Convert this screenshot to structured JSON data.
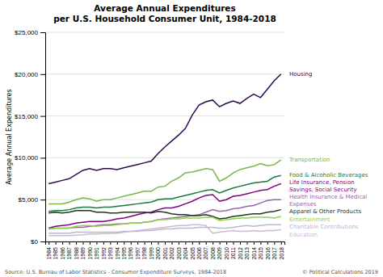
{
  "chart_data": {
    "type": "line",
    "title": "Average Annual Expenditures\nper U.S. Household Consumer Unit, 1984-2018",
    "y_label": "Average Annual Expenditures",
    "annotations": [
      "Source: U.S. Bureau of Labor Statistics - Consumer Expenditure Surveys, 1984-2018",
      "© Political Calculations 2019"
    ],
    "x": [
      1984,
      1985,
      1986,
      1987,
      1988,
      1989,
      1990,
      1991,
      1992,
      1993,
      1994,
      1995,
      1996,
      1997,
      1998,
      1999,
      2000,
      2001,
      2002,
      2003,
      2004,
      2005,
      2006,
      2007,
      2008,
      2009,
      2010,
      2011,
      2012,
      2013,
      2014,
      2015,
      2016,
      2017,
      2018
    ],
    "series": [
      {
        "name": "Housing",
        "color": "#2d0a4e",
        "values": [
          6900,
          7100,
          7300,
          7500,
          8000,
          8500,
          8700,
          8500,
          8700,
          8700,
          8600,
          8800,
          9000,
          9200,
          9400,
          9600,
          10500,
          11300,
          12000,
          12700,
          13500,
          15100,
          16300,
          16700,
          16900,
          16100,
          16500,
          16800,
          16500,
          17100,
          17600,
          17200,
          18200,
          19200,
          20000
        ]
      },
      {
        "name": "Transportation",
        "color": "#7ab648",
        "values": [
          4500,
          4500,
          4500,
          4700,
          5000,
          5200,
          5100,
          4800,
          5000,
          5000,
          5200,
          5400,
          5600,
          5800,
          6000,
          6000,
          6500,
          6600,
          7200,
          7600,
          8200,
          8300,
          8500,
          8700,
          8600,
          7200,
          7600,
          8200,
          8600,
          8800,
          9000,
          9300,
          9049,
          9180,
          9761
        ]
      },
      {
        "name": "Food & Alcoholic Beverages",
        "color": "#1a7a3c",
        "values": [
          3600,
          3700,
          3700,
          3800,
          4000,
          4100,
          4100,
          4000,
          4100,
          4100,
          4200,
          4300,
          4400,
          4500,
          4600,
          4700,
          5000,
          5100,
          5100,
          5300,
          5500,
          5700,
          5900,
          6100,
          6200,
          5800,
          6100,
          6400,
          6600,
          6800,
          7000,
          7100,
          7200,
          7700,
          7900
        ]
      },
      {
        "name": "Life Insurance, Pension\nSavings, Social Security",
        "color": "#800080",
        "values": [
          1600,
          1800,
          1900,
          2000,
          2200,
          2300,
          2400,
          2400,
          2400,
          2500,
          2700,
          2800,
          3000,
          3200,
          3400,
          3500,
          3800,
          4000,
          4000,
          4200,
          4500,
          4800,
          5200,
          5500,
          5600,
          4800,
          5000,
          5400,
          5500,
          5700,
          5900,
          6100,
          6200,
          6600,
          6900
        ]
      },
      {
        "name": "Health Insurance & Medical\nExpenses",
        "color": "#9966aa",
        "values": [
          1500,
          1600,
          1600,
          1600,
          1700,
          1700,
          1800,
          1900,
          2000,
          2000,
          2100,
          2100,
          2200,
          2200,
          2300,
          2400,
          2600,
          2700,
          2800,
          2900,
          3000,
          3100,
          3200,
          3500,
          3800,
          3600,
          3700,
          3900,
          4000,
          4200,
          4300,
          4600,
          4900,
          5000,
          5000
        ]
      },
      {
        "name": "Apparel & Other Products",
        "color": "#1a3a1a",
        "values": [
          3400,
          3500,
          3400,
          3500,
          3700,
          3700,
          3700,
          3500,
          3500,
          3400,
          3400,
          3500,
          3500,
          3500,
          3500,
          3400,
          3600,
          3500,
          3300,
          3200,
          3200,
          3100,
          3100,
          3200,
          3000,
          2700,
          2800,
          3000,
          3100,
          3200,
          3300,
          3300,
          3500,
          3600,
          3800
        ]
      },
      {
        "name": "Entertainment",
        "color": "#90d050",
        "values": [
          1500,
          1600,
          1600,
          1600,
          1800,
          1900,
          1900,
          1800,
          1900,
          1900,
          2000,
          2100,
          2200,
          2200,
          2300,
          2400,
          2600,
          2600,
          2700,
          2700,
          2800,
          2800,
          2800,
          2900,
          2900,
          2500,
          2600,
          2700,
          2800,
          2800,
          2900,
          2900,
          2900,
          2800,
          3000
        ]
      },
      {
        "name": "Charitable Contributions",
        "color": "#b8b8d0",
        "values": [
          1000,
          1000,
          1000,
          1000,
          1100,
          1100,
          1100,
          1100,
          1100,
          1100,
          1100,
          1200,
          1200,
          1200,
          1300,
          1300,
          1400,
          1500,
          1500,
          1600,
          1600,
          1600,
          1700,
          1700,
          1700,
          1600,
          1600,
          1700,
          1800,
          1900,
          1800,
          1900,
          2000,
          2000,
          2000
        ]
      },
      {
        "name": "Education",
        "color": "#d0b8d0",
        "values": [
          700,
          700,
          700,
          700,
          750,
          800,
          900,
          900,
          950,
          950,
          1000,
          1100,
          1200,
          1300,
          1400,
          1500,
          1600,
          1700,
          1800,
          1900,
          1900,
          2000,
          2000,
          1900,
          1000,
          1100,
          1200,
          1300,
          1200,
          1200,
          1300,
          1200,
          1300,
          1300,
          1400
        ]
      }
    ],
    "xlim": [
      1983.5,
      2018.5
    ],
    "xticks": [
      1984,
      1985,
      1986,
      1987,
      1988,
      1989,
      1990,
      1991,
      1992,
      1993,
      1994,
      1995,
      1996,
      1997,
      1998,
      1999,
      2000,
      2001,
      2002,
      2003,
      2004,
      2005,
      2006,
      2007,
      2008,
      2009,
      2010,
      2011,
      2012,
      2013,
      2014,
      2015,
      2016,
      2017,
      2018
    ],
    "ylim": [
      0,
      25000
    ],
    "yticks": [
      {
        "value": 0,
        "label": "$0"
      },
      {
        "value": 5000,
        "label": "$5,000"
      },
      {
        "value": 10000,
        "label": "$10,000"
      },
      {
        "value": 15000,
        "label": "$15,000"
      },
      {
        "value": 20000,
        "label": "$20,000"
      },
      {
        "value": 25000,
        "label": "$25,000"
      }
    ],
    "grid": true
  }
}
